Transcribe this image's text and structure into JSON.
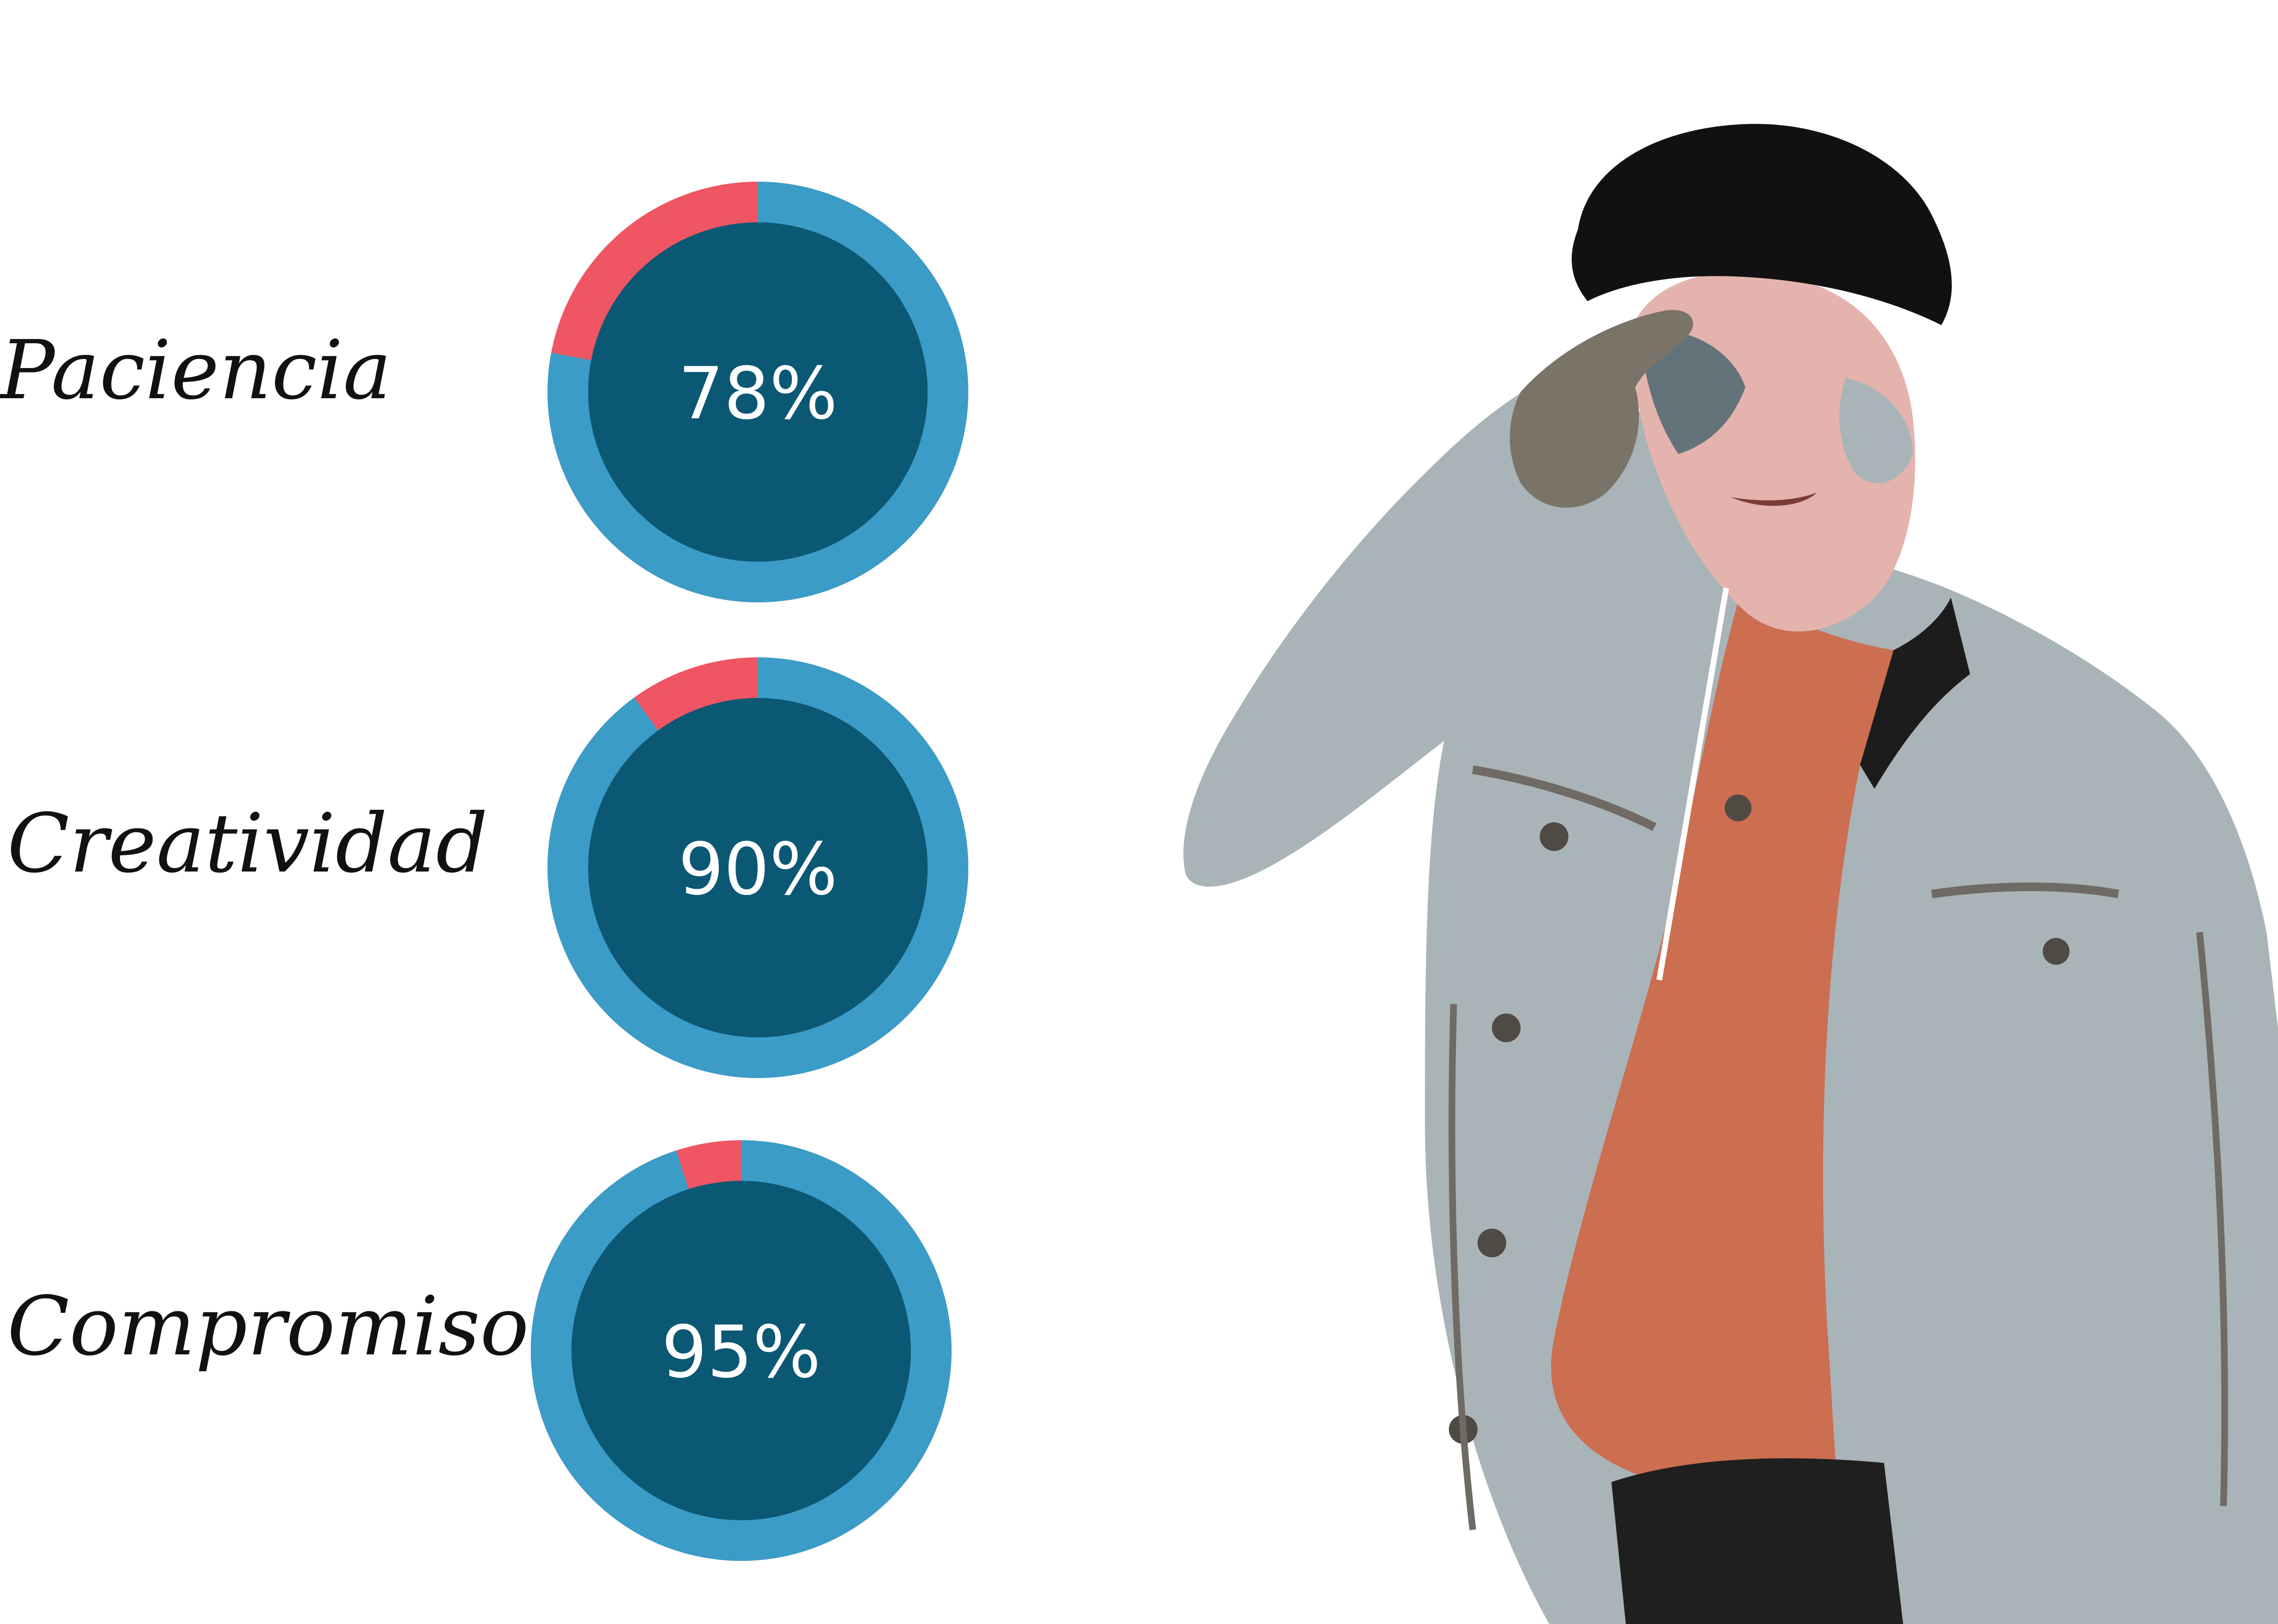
{
  "colors": {
    "ring": "#3b9cc7",
    "ring_remainder": "#ef5563",
    "center": "#0b5874",
    "value_text": "#ffffff",
    "label_text": "#111111"
  },
  "chart_data": {
    "type": "pie",
    "skills": [
      {
        "label": "Paciencia",
        "value": 78,
        "display": "78%"
      },
      {
        "label": "Creatividad",
        "value": 90,
        "display": "90%"
      },
      {
        "label": "Compromiso",
        "value": 95,
        "display": "95%"
      }
    ]
  }
}
